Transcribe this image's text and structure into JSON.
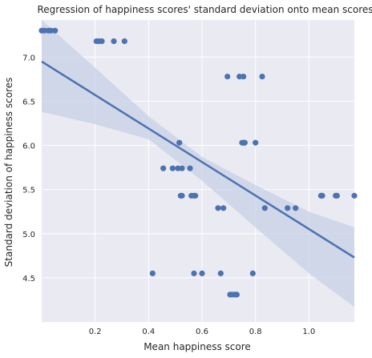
{
  "chart_data": {
    "type": "scatter",
    "title": "Regression of happiness scores' standard deviation onto mean scores",
    "xlabel": "Mean happiness score",
    "ylabel": "Standard deviation of happiness scores",
    "xlim": [
      0.0,
      1.17
    ],
    "ylim": [
      4.0,
      7.42
    ],
    "xticks": [
      0.2,
      0.4,
      0.6,
      0.8,
      1.0
    ],
    "xtick_labels": [
      "0.2",
      "0.4",
      "0.6",
      "0.8",
      "1.0"
    ],
    "yticks": [
      4.5,
      5.0,
      5.5,
      6.0,
      6.5,
      7.0
    ],
    "ytick_labels": [
      "4.5",
      "5.0",
      "5.5",
      "6.0",
      "6.5",
      "7.0"
    ],
    "grid": true,
    "background_color": "#eaeaf2",
    "point_color": "#4c72b0",
    "line_color": "#4c72b0",
    "band_color": "#c7d0e6",
    "points": [
      {
        "x": 0.0,
        "y": 7.3
      },
      {
        "x": 0.01,
        "y": 7.3
      },
      {
        "x": 0.025,
        "y": 7.3
      },
      {
        "x": 0.035,
        "y": 7.3
      },
      {
        "x": 0.05,
        "y": 7.3
      },
      {
        "x": 0.205,
        "y": 7.18
      },
      {
        "x": 0.215,
        "y": 7.18
      },
      {
        "x": 0.225,
        "y": 7.18
      },
      {
        "x": 0.27,
        "y": 7.18
      },
      {
        "x": 0.31,
        "y": 7.18
      },
      {
        "x": 0.695,
        "y": 6.78
      },
      {
        "x": 0.74,
        "y": 6.78
      },
      {
        "x": 0.755,
        "y": 6.78
      },
      {
        "x": 0.825,
        "y": 6.78
      },
      {
        "x": 0.515,
        "y": 6.03
      },
      {
        "x": 0.75,
        "y": 6.03
      },
      {
        "x": 0.755,
        "y": 6.03
      },
      {
        "x": 0.76,
        "y": 6.03
      },
      {
        "x": 0.8,
        "y": 6.03
      },
      {
        "x": 0.455,
        "y": 5.74
      },
      {
        "x": 0.49,
        "y": 5.74
      },
      {
        "x": 0.51,
        "y": 5.74
      },
      {
        "x": 0.525,
        "y": 5.74
      },
      {
        "x": 0.555,
        "y": 5.74
      },
      {
        "x": 0.52,
        "y": 5.43
      },
      {
        "x": 0.525,
        "y": 5.43
      },
      {
        "x": 0.56,
        "y": 5.43
      },
      {
        "x": 0.57,
        "y": 5.43
      },
      {
        "x": 0.575,
        "y": 5.43
      },
      {
        "x": 1.045,
        "y": 5.43
      },
      {
        "x": 1.05,
        "y": 5.43
      },
      {
        "x": 1.1,
        "y": 5.43
      },
      {
        "x": 1.105,
        "y": 5.43
      },
      {
        "x": 1.17,
        "y": 5.43
      },
      {
        "x": 0.66,
        "y": 5.29
      },
      {
        "x": 0.68,
        "y": 5.29
      },
      {
        "x": 0.835,
        "y": 5.29
      },
      {
        "x": 0.92,
        "y": 5.29
      },
      {
        "x": 0.95,
        "y": 5.29
      },
      {
        "x": 0.415,
        "y": 4.55
      },
      {
        "x": 0.57,
        "y": 4.55
      },
      {
        "x": 0.6,
        "y": 4.55
      },
      {
        "x": 0.67,
        "y": 4.55
      },
      {
        "x": 0.79,
        "y": 4.55
      },
      {
        "x": 0.705,
        "y": 4.31
      },
      {
        "x": 0.71,
        "y": 4.31
      },
      {
        "x": 0.72,
        "y": 4.31
      },
      {
        "x": 0.725,
        "y": 4.31
      },
      {
        "x": 0.73,
        "y": 4.31
      }
    ],
    "regression": {
      "x": [
        0.0,
        1.17
      ],
      "y": [
        6.95,
        4.73
      ]
    },
    "confidence_band": {
      "x": [
        0.0,
        0.2,
        0.4,
        0.6,
        0.8,
        1.0,
        1.17
      ],
      "upper": [
        7.42,
        6.88,
        6.33,
        5.87,
        5.55,
        5.25,
        5.07
      ],
      "lower": [
        6.38,
        6.24,
        6.07,
        5.6,
        5.07,
        4.55,
        4.17
      ]
    }
  }
}
